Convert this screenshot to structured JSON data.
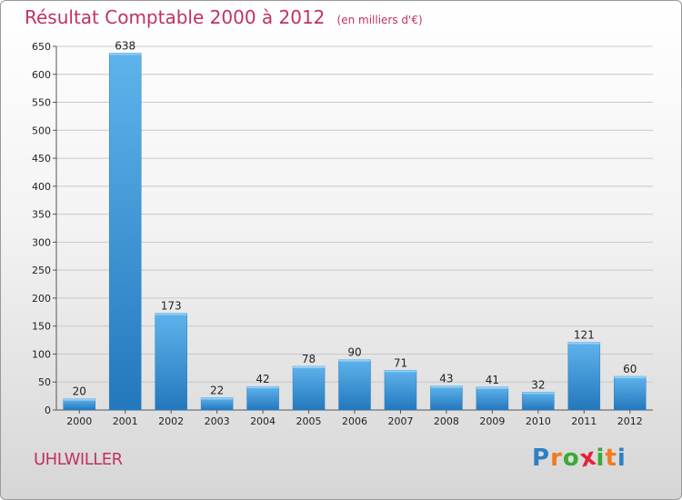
{
  "chart_data": {
    "type": "bar",
    "title": "Résultat Comptable 2000 à 2012",
    "unit_label": "(en milliers d'€)",
    "categories": [
      "2000",
      "2001",
      "2002",
      "2003",
      "2004",
      "2005",
      "2006",
      "2007",
      "2008",
      "2009",
      "2010",
      "2011",
      "2012"
    ],
    "values": [
      20,
      638,
      173,
      22,
      42,
      78,
      90,
      71,
      43,
      41,
      32,
      121,
      60
    ],
    "ylim": [
      0,
      650
    ],
    "yticks": [
      0,
      50,
      100,
      150,
      200,
      250,
      300,
      350,
      400,
      450,
      500,
      550,
      600,
      650
    ],
    "xlabel": "",
    "ylabel": "",
    "grid": true,
    "bar_color": "#3a96d8"
  },
  "commune": "UHLWILLER",
  "logo": {
    "letters": [
      "P",
      "r",
      "o",
      "x",
      "i",
      "t",
      "i"
    ],
    "colors": [
      "#2f7fc4",
      "#f07c1e",
      "#3aaa35",
      "#e2213b",
      "#3aaa35",
      "#f07c1e",
      "#2f7fc4"
    ]
  }
}
